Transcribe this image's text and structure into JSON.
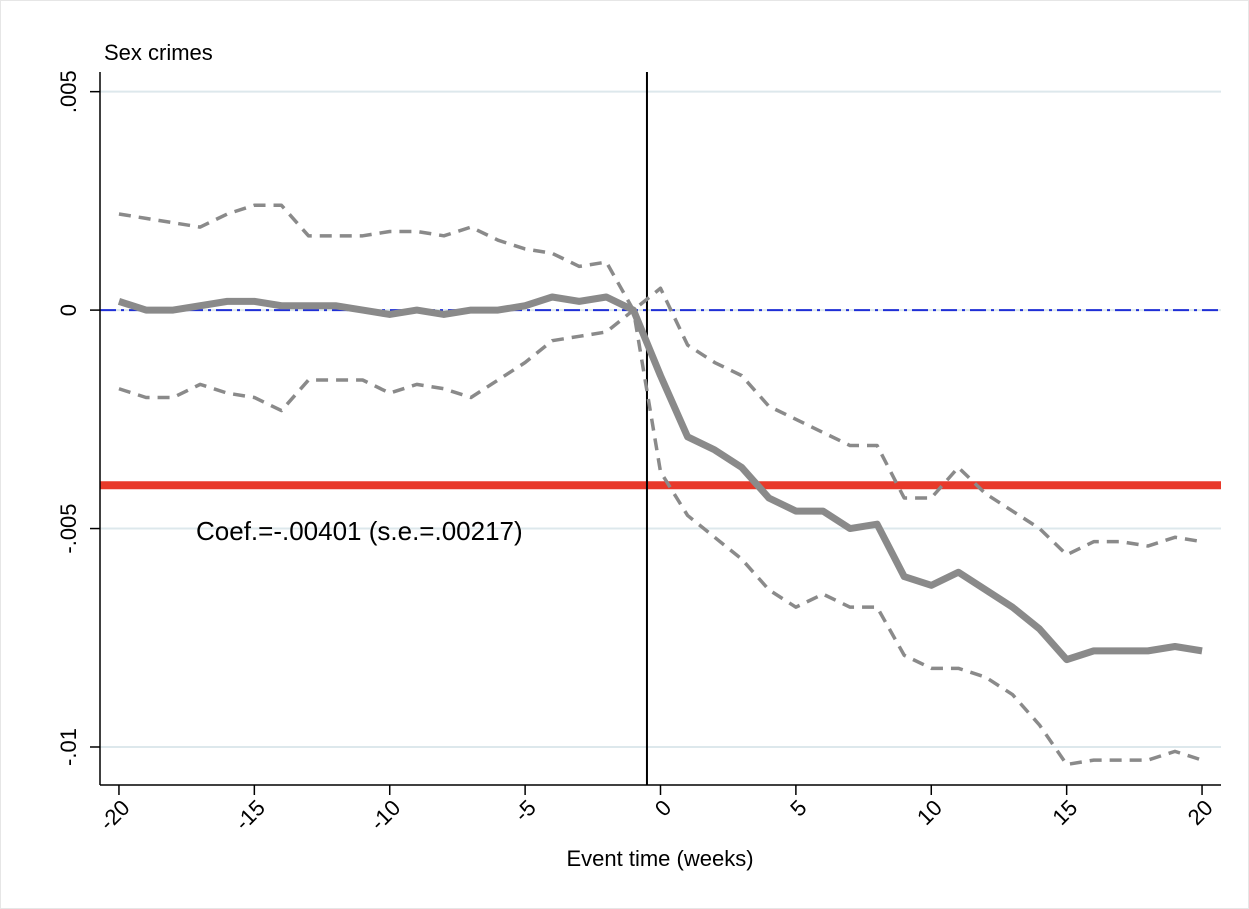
{
  "chart_data": {
    "type": "line",
    "ylabel": "Sex crimes",
    "xlabel": "Event time (weeks)",
    "annotation": "Coef.=-.00401 (s.e.=.00217)",
    "x": [
      -20,
      -19,
      -18,
      -17,
      -16,
      -15,
      -14,
      -13,
      -12,
      -11,
      -10,
      -9,
      -8,
      -7,
      -6,
      -5,
      -4,
      -3,
      -2,
      -1,
      0,
      1,
      2,
      3,
      4,
      5,
      6,
      7,
      8,
      9,
      10,
      11,
      12,
      13,
      14,
      15,
      16,
      17,
      18,
      19,
      20
    ],
    "series": [
      {
        "color": "#8a8a8a",
        "style": "solid",
        "values": [
          0.0002,
          0.0,
          0.0,
          0.0001,
          0.0002,
          0.0002,
          0.0001,
          0.0001,
          0.0001,
          0.0,
          -0.0001,
          0.0,
          -0.0001,
          0.0,
          0.0,
          0.0001,
          0.0003,
          0.0002,
          0.0003,
          0.0,
          -0.0015,
          -0.0029,
          -0.0032,
          -0.0036,
          -0.0043,
          -0.0046,
          -0.0046,
          -0.005,
          -0.0049,
          -0.0061,
          -0.0063,
          -0.006,
          -0.0064,
          -0.0068,
          -0.0073,
          -0.008,
          -0.0078,
          -0.0078,
          -0.0078,
          -0.0077,
          -0.0078
        ]
      },
      {
        "color": "#8a8a8a",
        "style": "dashed",
        "values": [
          0.0022,
          0.0021,
          0.002,
          0.0019,
          0.0022,
          0.0024,
          0.0024,
          0.0017,
          0.0017,
          0.0017,
          0.0018,
          0.0018,
          0.0017,
          0.0019,
          0.0016,
          0.0014,
          0.0013,
          0.001,
          0.0011,
          0.0,
          0.0005,
          -0.0008,
          -0.0012,
          -0.0015,
          -0.0022,
          -0.0025,
          -0.0028,
          -0.0031,
          -0.0031,
          -0.0043,
          -0.0043,
          -0.0036,
          -0.0042,
          -0.0046,
          -0.005,
          -0.0056,
          -0.0053,
          -0.0053,
          -0.0054,
          -0.0052,
          -0.0053
        ]
      },
      {
        "color": "#8a8a8a",
        "style": "dashed",
        "values": [
          -0.0018,
          -0.002,
          -0.002,
          -0.0017,
          -0.0019,
          -0.002,
          -0.0023,
          -0.0016,
          -0.0016,
          -0.0016,
          -0.0019,
          -0.0017,
          -0.0018,
          -0.002,
          -0.0016,
          -0.0012,
          -0.0007,
          -0.0006,
          -0.0005,
          0.0,
          -0.0037,
          -0.0047,
          -0.0052,
          -0.0057,
          -0.0064,
          -0.0068,
          -0.0065,
          -0.0068,
          -0.0068,
          -0.0079,
          -0.0082,
          -0.0082,
          -0.0084,
          -0.0088,
          -0.0095,
          -0.0104,
          -0.0103,
          -0.0103,
          -0.0103,
          -0.0101,
          -0.0103
        ]
      }
    ],
    "hlines": [
      {
        "value": -0.00401,
        "color": "#e8392a",
        "style": "solid"
      },
      {
        "value": 0,
        "color": "#1f2fd6",
        "style": "dashdot"
      }
    ],
    "vline": {
      "value": -0.5,
      "color": "#000000"
    },
    "xlim": [
      -20.7,
      20.7
    ],
    "ylim": [
      -0.01087,
      0.00545
    ],
    "xticks": [
      -20,
      -15,
      -10,
      -5,
      0,
      5,
      10,
      15,
      20
    ],
    "yticks": [
      {
        "value": 0.005,
        "label": ".005"
      },
      0,
      {
        "value": -0.005,
        "label": "-.005"
      },
      {
        "value": -0.01,
        "label": "-.01"
      }
    ],
    "grid": true
  }
}
